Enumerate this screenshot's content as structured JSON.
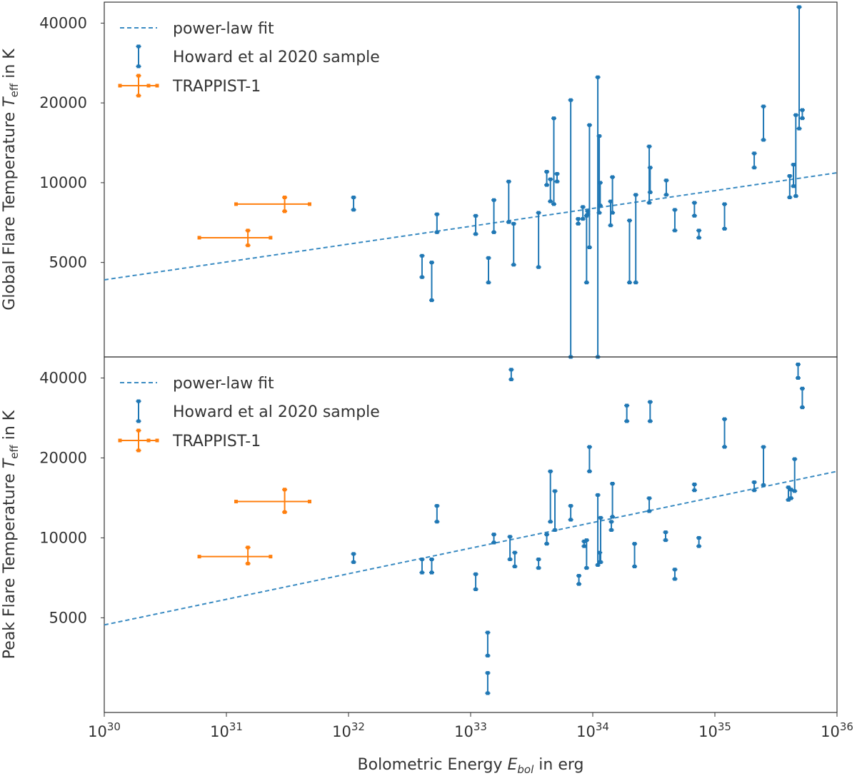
{
  "colors": {
    "fit": "#3a8bc2",
    "howard": "#1f77b4",
    "trappist": "#ff7f0e",
    "axis": "#333333"
  },
  "chart_data": [
    {
      "type": "scatter",
      "name": "global",
      "ylabel": "Global Flare Temperature",
      "ylabel_symbol": "T",
      "ylabel_sub": "eff",
      "ylabel_unit": "in K",
      "ylim": [
        2200,
        48000
      ],
      "yscale": "log",
      "yticks": [
        5000,
        10000,
        20000,
        40000
      ],
      "ytick_labels": [
        "5000",
        "10000",
        "20000",
        "40000"
      ],
      "legend": {
        "position": "top-left",
        "entries": [
          "power-law fit",
          "Howard et al 2020 sample",
          "TRAPPIST-1"
        ]
      },
      "fit": {
        "x": [
          1e+30,
          1e+36
        ],
        "y": [
          4300,
          10900
        ]
      },
      "howard": [
        [
          1.1e+32,
          7900,
          8800
        ],
        [
          4e+32,
          4400,
          5300
        ],
        [
          4.8e+32,
          3600,
          5000
        ],
        [
          5.3e+32,
          6500,
          7600
        ],
        [
          1.1e+33,
          6400,
          7500
        ],
        [
          1.4e+33,
          4200,
          5200
        ],
        [
          1.55e+33,
          6500,
          8600
        ],
        [
          2.05e+33,
          7100,
          10100
        ],
        [
          2.25e+33,
          4900,
          7000
        ],
        [
          3.6e+33,
          4800,
          7700
        ],
        [
          4.2e+33,
          9800,
          11000
        ],
        [
          4.5e+33,
          8500,
          10300
        ],
        [
          4.8e+33,
          8300,
          17500
        ],
        [
          5.1e+33,
          10100,
          10800
        ],
        [
          6.6e+33,
          2200,
          20500
        ],
        [
          7.6e+33,
          7000,
          7300
        ],
        [
          8.3e+33,
          7300,
          8100
        ],
        [
          8.9e+33,
          4200,
          7500
        ],
        [
          9.1e+33,
          7600,
          7800
        ],
        [
          9.4e+33,
          5700,
          16500
        ],
        [
          1.1e+34,
          2200,
          25000
        ],
        [
          1.13e+34,
          7700,
          15000
        ],
        [
          1.15e+34,
          8200,
          10000
        ],
        [
          1.4e+34,
          6900,
          8500
        ],
        [
          1.45e+34,
          7700,
          10500
        ],
        [
          2e+34,
          4200,
          7200
        ],
        [
          2.25e+34,
          4200,
          9000
        ],
        [
          2.9e+34,
          8400,
          13700
        ],
        [
          2.95e+34,
          9200,
          11400
        ],
        [
          4e+34,
          9000,
          10200
        ],
        [
          4.7e+34,
          6600,
          7900
        ],
        [
          6.8e+34,
          7500,
          8400
        ],
        [
          7.4e+34,
          6200,
          6600
        ],
        [
          1.2e+35,
          6700,
          8300
        ],
        [
          2.1e+35,
          11400,
          12900
        ],
        [
          2.5e+35,
          14500,
          19400
        ],
        [
          4.1e+35,
          8800,
          10600
        ],
        [
          4.4e+35,
          9700,
          11700
        ],
        [
          4.6e+35,
          8900,
          18000
        ],
        [
          4.9e+35,
          16000,
          46000
        ],
        [
          5.2e+35,
          17500,
          18800
        ]
      ],
      "trappist": [
        {
          "x": 1.5e+31,
          "xlo": 6e+30,
          "xhi": 2.3e+31,
          "y": 6200,
          "ylo": 5800,
          "yhi": 6600
        },
        {
          "x": 3e+31,
          "xlo": 1.2e+31,
          "xhi": 4.8e+31,
          "y": 8300,
          "ylo": 7800,
          "yhi": 8800
        }
      ]
    },
    {
      "type": "scatter",
      "name": "peak",
      "ylabel": "Peak Flare Temperature",
      "ylabel_symbol": "T",
      "ylabel_sub": "eff",
      "ylabel_unit": "in K",
      "ylim": [
        2200,
        48000
      ],
      "yscale": "log",
      "yticks": [
        5000,
        10000,
        20000,
        40000
      ],
      "ytick_labels": [
        "5000",
        "10000",
        "20000",
        "40000"
      ],
      "legend": {
        "position": "top-left",
        "entries": [
          "power-law fit",
          "Howard et al 2020 sample",
          "TRAPPIST-1"
        ]
      },
      "fit": {
        "x": [
          1e+30,
          1e+36
        ],
        "y": [
          4700,
          17800
        ]
      },
      "howard": [
        [
          1.1e+32,
          8100,
          8700
        ],
        [
          4e+32,
          7400,
          8300
        ],
        [
          4.8e+32,
          7400,
          8300
        ],
        [
          5.3e+32,
          11500,
          13200
        ],
        [
          1.1e+33,
          6400,
          7300
        ],
        [
          1.38e+33,
          3600,
          4400
        ],
        [
          1.38e+33,
          2600,
          3100
        ],
        [
          1.55e+33,
          9600,
          10300
        ],
        [
          2.1e+33,
          8300,
          10100
        ],
        [
          2.15e+33,
          39500,
          43000
        ],
        [
          2.3e+33,
          7800,
          8800
        ],
        [
          3.6e+33,
          7700,
          8300
        ],
        [
          4.2e+33,
          9500,
          10300
        ],
        [
          4.5e+33,
          11500,
          17800
        ],
        [
          4.9e+33,
          10700,
          15000
        ],
        [
          6.6e+33,
          11700,
          13200
        ],
        [
          7.7e+33,
          6700,
          7200
        ],
        [
          8.5e+33,
          9300,
          9700
        ],
        [
          8.9e+33,
          7700,
          9800
        ],
        [
          9.4e+33,
          17800,
          22000
        ],
        [
          1.1e+34,
          7900,
          14500
        ],
        [
          1.14e+34,
          8100,
          8800
        ],
        [
          1.16e+34,
          8100,
          11900
        ],
        [
          1.42e+34,
          10700,
          11500
        ],
        [
          1.45e+34,
          12000,
          16000
        ],
        [
          1.9e+34,
          27500,
          31500
        ],
        [
          2.2e+34,
          7800,
          9500
        ],
        [
          2.9e+34,
          12600,
          14100
        ],
        [
          2.95e+34,
          27500,
          32500
        ],
        [
          3.95e+34,
          9800,
          10500
        ],
        [
          4.7e+34,
          7000,
          7600
        ],
        [
          6.8e+34,
          15100,
          15900
        ],
        [
          7.4e+34,
          9300,
          10000
        ],
        [
          1.2e+35,
          22000,
          28000
        ],
        [
          2.1e+35,
          15100,
          16200
        ],
        [
          2.5e+35,
          15800,
          22000
        ],
        [
          4e+35,
          13900,
          15500
        ],
        [
          4.2e+35,
          14100,
          15200
        ],
        [
          4.5e+35,
          15000,
          19800
        ],
        [
          4.8e+35,
          40000,
          45000
        ],
        [
          5.2e+35,
          31000,
          36500
        ]
      ],
      "trappist": [
        {
          "x": 1.5e+31,
          "xlo": 6e+30,
          "xhi": 2.3e+31,
          "y": 8500,
          "ylo": 8000,
          "yhi": 9200
        },
        {
          "x": 3e+31,
          "xlo": 1.2e+31,
          "xhi": 4.8e+31,
          "y": 13700,
          "ylo": 12500,
          "yhi": 15200
        }
      ]
    }
  ],
  "xaxis": {
    "label": "Bolometric Energy",
    "label_symbol": "E",
    "label_sub": "bol",
    "label_unit": "in erg",
    "scale": "log",
    "xlim": [
      1e+30,
      1e+36
    ],
    "ticks": [
      30,
      31,
      32,
      33,
      34,
      35,
      36
    ],
    "tick_base": "10",
    "tick_exps": [
      "30",
      "31",
      "32",
      "33",
      "34",
      "35",
      "36"
    ]
  }
}
